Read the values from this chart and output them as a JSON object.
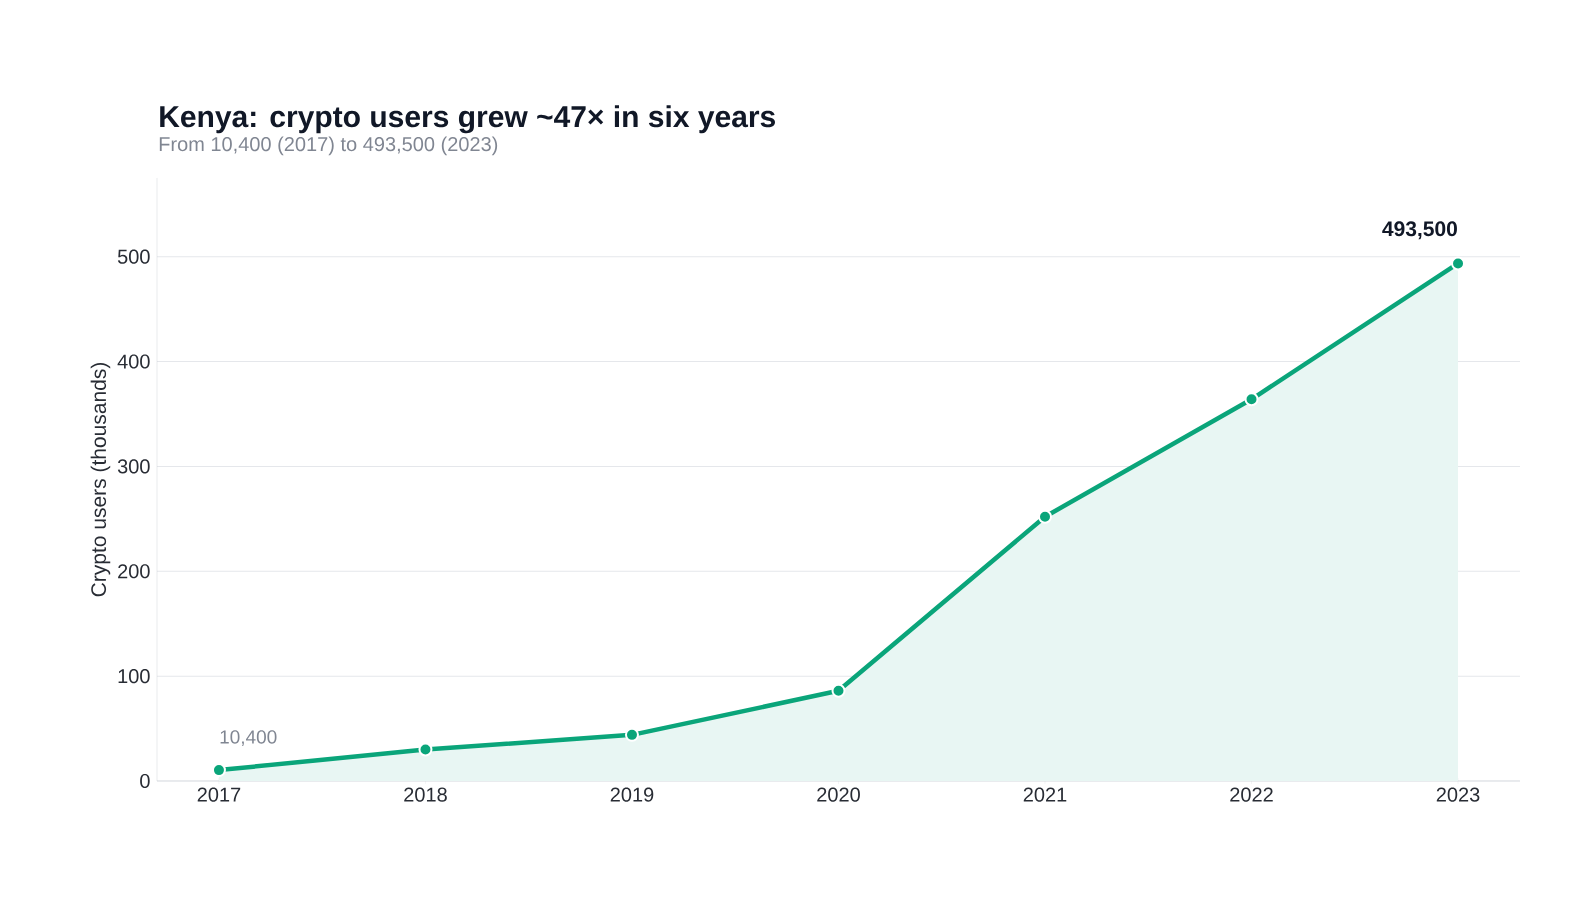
{
  "chart_data": {
    "type": "area",
    "title": "Kenya: crypto users grew ~47× in six years",
    "subtitle": "From 10,400 (2017) to 493,500 (2023)",
    "ylabel": "Crypto users (thousands)",
    "x": [
      2017,
      2018,
      2019,
      2020,
      2021,
      2022,
      2023
    ],
    "series": [
      {
        "color": "#0aa57a",
        "values": [
          10.4,
          30,
          44,
          86,
          252,
          364,
          493.5
        ]
      }
    ],
    "xlim": [
      2016.7,
      2023.3
    ],
    "xticks": [
      2017,
      2018,
      2019,
      2020,
      2021,
      2022,
      2023
    ],
    "ylim": [
      0,
      575
    ],
    "yticks": [
      0,
      100,
      200,
      300,
      400,
      500
    ],
    "grid": "y",
    "marker": "circle",
    "line_style": "solid",
    "annotations": [
      {
        "text": "10,400",
        "x": 2017,
        "y": 10.4
      },
      {
        "text": "493,500",
        "x": 2023,
        "y": 493.5
      }
    ]
  }
}
